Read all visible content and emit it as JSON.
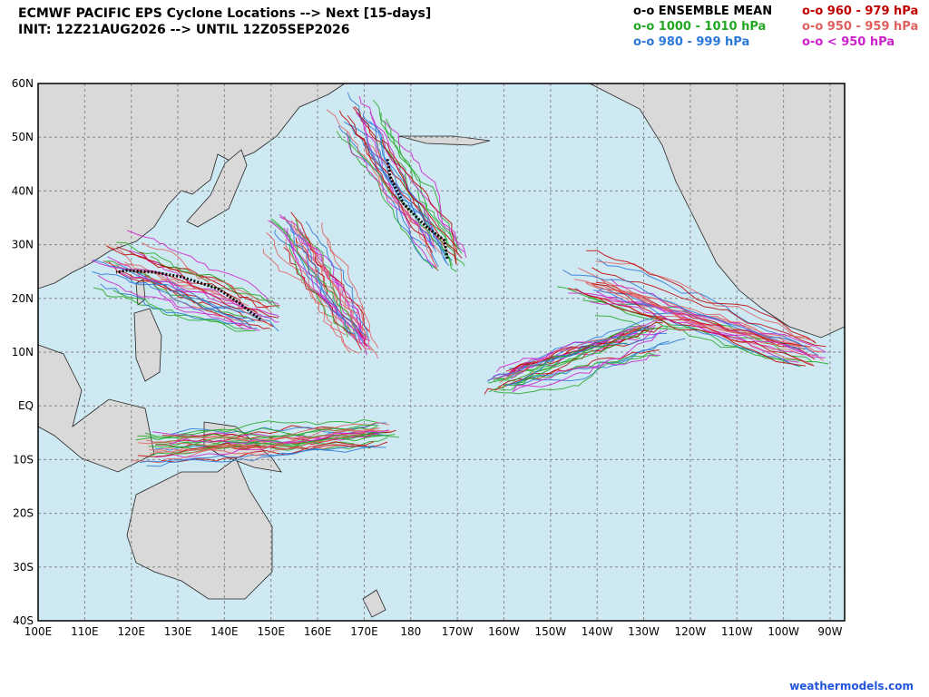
{
  "header": {
    "title": "ECMWF PACIFIC EPS Cyclone Locations --> Next [15-days]",
    "subtitle": "INIT: 12Z21AUG2026 --> UNTIL 12Z05SEP2026"
  },
  "legend": [
    {
      "label": "o-o ENSEMBLE MEAN",
      "color": "#000000"
    },
    {
      "label": "o-o 960 - 979 hPa",
      "color": "#c00000"
    },
    {
      "label": "o-o 1000 - 1010 hPa",
      "color": "#22a822"
    },
    {
      "label": "o-o 950 - 959 hPa",
      "color": "#e06060"
    },
    {
      "label": "o-o 980 - 999 hPa",
      "color": "#2a78d8"
    },
    {
      "label": "o-o < 950 hPa",
      "color": "#cc22cc"
    }
  ],
  "map": {
    "x_labels": [
      "100E",
      "110E",
      "120E",
      "130E",
      "140E",
      "150E",
      "160E",
      "170E",
      "180",
      "170W",
      "160W",
      "150W",
      "140W",
      "130W",
      "120W",
      "110W",
      "100W",
      "90W"
    ],
    "y_labels": [
      "60N",
      "50N",
      "40N",
      "30N",
      "20N",
      "10N",
      "EQ",
      "10S",
      "20S",
      "30S",
      "40S"
    ]
  },
  "footer": {
    "site": "weathermodels.com"
  }
}
